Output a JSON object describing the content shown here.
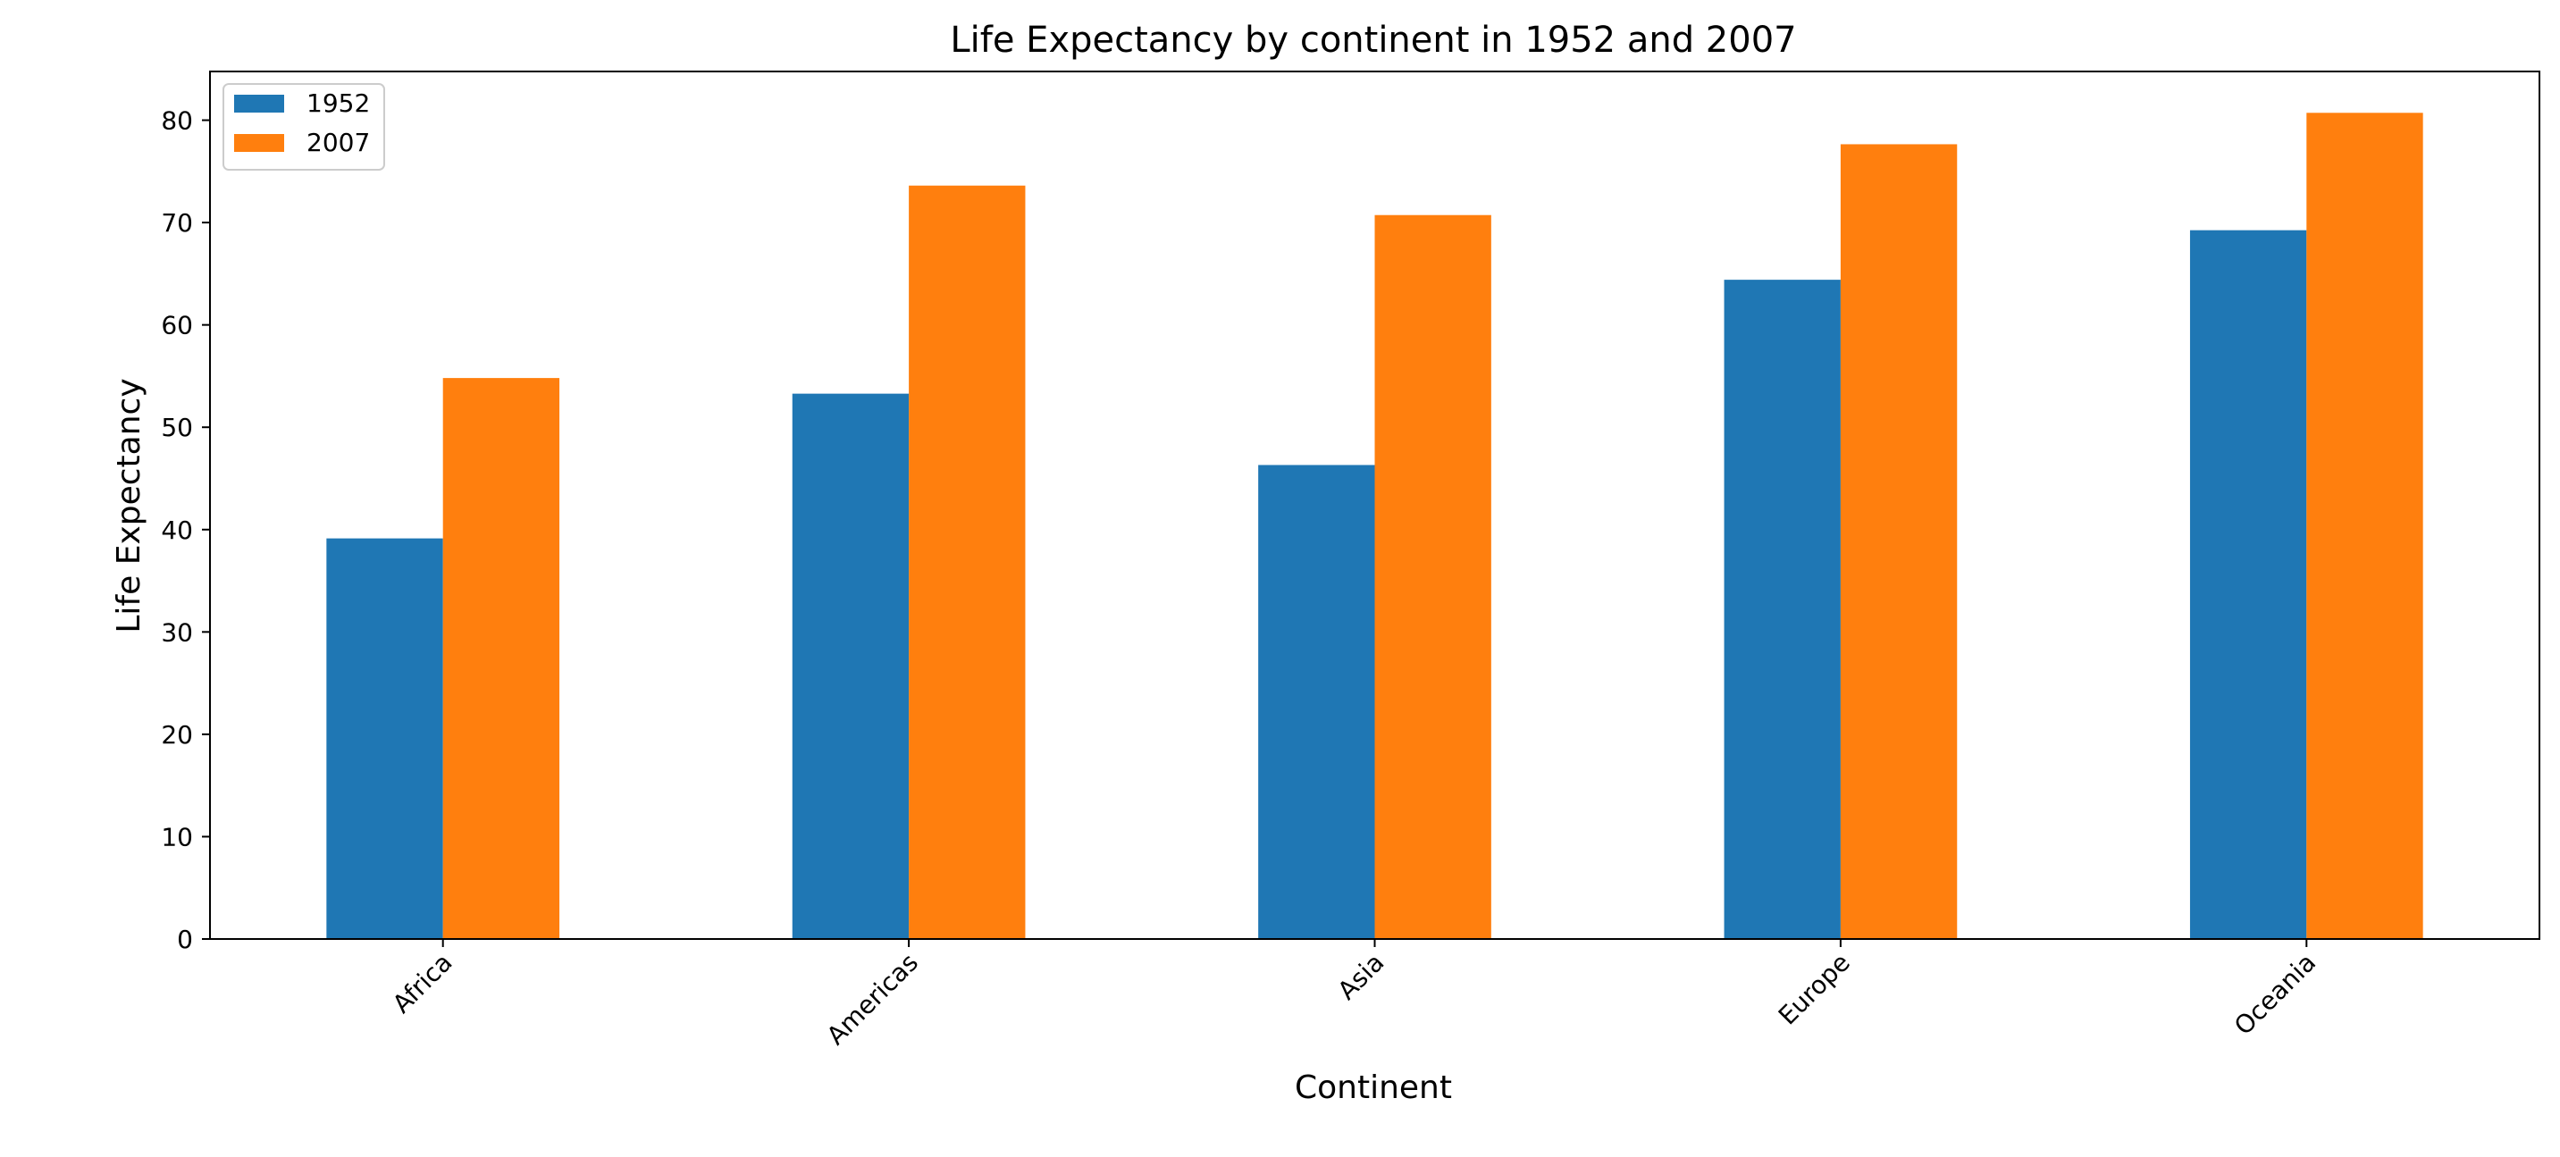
{
  "chart_data": {
    "type": "bar",
    "title": "Life Expectancy by continent in 1952 and 2007",
    "xlabel": "Continent",
    "ylabel": "Life Expectancy",
    "categories": [
      "Africa",
      "Americas",
      "Asia",
      "Europe",
      "Oceania"
    ],
    "series": [
      {
        "name": "1952",
        "values": [
          39.14,
          53.28,
          46.31,
          64.41,
          69.25
        ],
        "color": "#1f77b4"
      },
      {
        "name": "2007",
        "values": [
          54.81,
          73.61,
          70.73,
          77.65,
          80.72
        ],
        "color": "#ff7f0e"
      }
    ],
    "ylim": [
      0,
      84.76
    ],
    "yticks": [
      0,
      10,
      20,
      30,
      40,
      50,
      60,
      70,
      80
    ],
    "grid": false,
    "legend_position": "top-left",
    "xtick_rotation_deg": 45
  }
}
